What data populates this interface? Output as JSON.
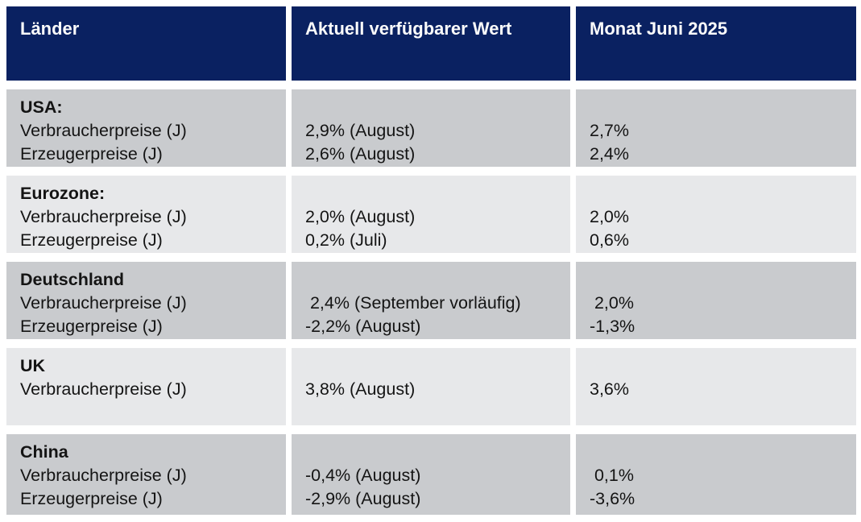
{
  "table": {
    "columns": [
      {
        "label": "Länder"
      },
      {
        "label": "Aktuell verfügbarer Wert"
      },
      {
        "label": "Monat Juni 2025"
      }
    ],
    "rows": [
      {
        "country": "USA:",
        "metrics": [
          "Verbraucherpreise (J)",
          "Erzeugerpreise (J)"
        ],
        "current": [
          "2,9% (August)",
          "2,6% (August)"
        ],
        "june": [
          "2,7%",
          "2,4%"
        ]
      },
      {
        "country": "Eurozone:",
        "metrics": [
          "Verbraucherpreise (J)",
          "Erzeugerpreise (J)"
        ],
        "current": [
          "2,0% (August)",
          "0,2% (Juli)"
        ],
        "june": [
          "2,0%",
          "0,6%"
        ]
      },
      {
        "country": "Deutschland",
        "metrics": [
          "Verbraucherpreise (J)",
          "Erzeugerpreise (J)"
        ],
        "current": [
          " 2,4% (September vorläufig)",
          "-2,2% (August)"
        ],
        "june": [
          " 2,0%",
          "-1,3%"
        ]
      },
      {
        "country": "UK",
        "metrics": [
          "Verbraucherpreise (J)"
        ],
        "current": [
          "3,8% (August)"
        ],
        "june": [
          "3,6%"
        ]
      },
      {
        "country": "China",
        "metrics": [
          "Verbraucherpreise (J)",
          "Erzeugerpreise (J)"
        ],
        "current": [
          "-0,4% (August)",
          "-2,9% (August)"
        ],
        "june": [
          " 0,1%",
          "-3,6%"
        ]
      }
    ]
  },
  "colors": {
    "header_bg": "#0a2161",
    "header_text": "#fbfbfb",
    "row_dark": "#c9cbce",
    "row_light": "#e7e8ea",
    "body_text": "#141414"
  }
}
